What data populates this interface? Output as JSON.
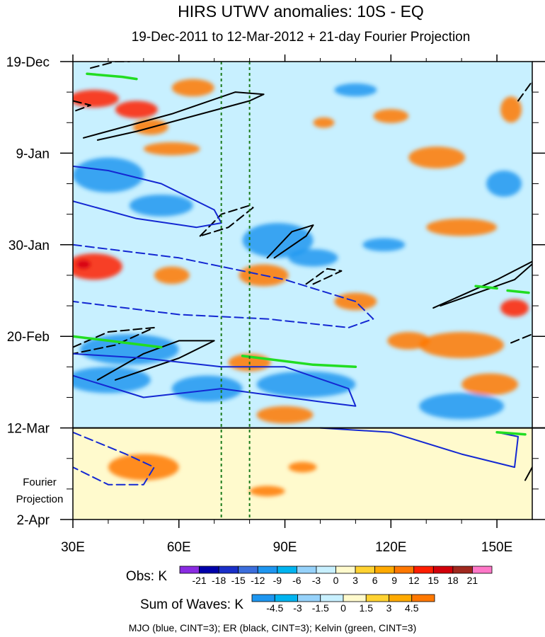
{
  "chart_data": {
    "type": "heatmap",
    "title": "HIRS UTWV anomalies: 10S - EQ",
    "subtitle": "19-Dec-2011 to 12-Mar-2012 + 21-day Fourier Projection",
    "xlabel": "",
    "ylabel": "",
    "x_range": [
      30,
      160
    ],
    "x_ticks": [
      {
        "value": 30,
        "label": "30E"
      },
      {
        "value": 60,
        "label": "60E"
      },
      {
        "value": 90,
        "label": "90E"
      },
      {
        "value": 120,
        "label": "120E"
      },
      {
        "value": 150,
        "label": "150E"
      }
    ],
    "y_range_days": [
      0,
      105
    ],
    "y_ticks": [
      {
        "day": 0,
        "label": "19-Dec"
      },
      {
        "day": 21,
        "label": "9-Jan"
      },
      {
        "day": 42,
        "label": "30-Jan"
      },
      {
        "day": 63,
        "label": "20-Feb"
      },
      {
        "day": 84,
        "label": "12-Mar"
      },
      {
        "day": 105,
        "label": "2-Apr"
      }
    ],
    "projection_start_day": 84,
    "projection_label": [
      "Fourier",
      "Projection"
    ],
    "reference_longitudes": [
      72,
      80
    ],
    "obs_colorbar": {
      "label": "Obs: K",
      "levels": [
        "-21",
        "-18",
        "-15",
        "-12",
        "-9",
        "-6",
        "-3",
        "0",
        "3",
        "6",
        "9",
        "12",
        "15",
        "18",
        "21"
      ],
      "colors": [
        "#8a2be2",
        "#0000aa",
        "#1a2fc8",
        "#3c6edc",
        "#1e96f0",
        "#00b4f0",
        "#96d2fa",
        "#c8f0ff",
        "#fffacd",
        "#ffd232",
        "#ffaa00",
        "#ff7800",
        "#ff1e00",
        "#d2000a",
        "#a0281e",
        "#ff78c8"
      ]
    },
    "waves_colorbar": {
      "label": "Sum of Waves: K",
      "levels": [
        "-4.5",
        "-3",
        "-1.5",
        "0",
        "1.5",
        "3",
        "4.5"
      ],
      "colors": [
        "#1e96f0",
        "#00b4f0",
        "#96d2fa",
        "#c8f0ff",
        "#fffacd",
        "#ffd232",
        "#ffaa00",
        "#ff7800"
      ]
    },
    "footnote": "MJO (blue, CINT=3); ER (black, CINT=3); Kelvin (green, CINT=3)",
    "anomaly_patches": [
      {
        "lon": 36,
        "day": 8.5,
        "rx": 7,
        "ry": 2,
        "level": 5
      },
      {
        "lon": 48,
        "day": 11,
        "rx": 6,
        "ry": 2,
        "level": 5
      },
      {
        "lon": 64,
        "day": 6,
        "rx": 6,
        "ry": 2,
        "level": 4
      },
      {
        "lon": 52,
        "day": 15,
        "rx": 5,
        "ry": 1.8,
        "level": 4
      },
      {
        "lon": 58,
        "day": 20,
        "rx": 8,
        "ry": 1.5,
        "level": 4
      },
      {
        "lon": 40,
        "day": 26,
        "rx": 10,
        "ry": 4,
        "level": -4
      },
      {
        "lon": 55,
        "day": 33,
        "rx": 9,
        "ry": 2.5,
        "level": -4
      },
      {
        "lon": 88,
        "day": 41,
        "rx": 10,
        "ry": 4,
        "level": -4
      },
      {
        "lon": 110,
        "day": 6.5,
        "rx": 6,
        "ry": 1.5,
        "level": -4
      },
      {
        "lon": 120,
        "day": 12.5,
        "rx": 5,
        "ry": 1.6,
        "level": 4
      },
      {
        "lon": 101,
        "day": 14,
        "rx": 3,
        "ry": 1.2,
        "level": 4
      },
      {
        "lon": 133,
        "day": 22,
        "rx": 8,
        "ry": 2.5,
        "level": 4
      },
      {
        "lon": 154,
        "day": 11,
        "rx": 3,
        "ry": 3,
        "level": 4
      },
      {
        "lon": 152,
        "day": 28,
        "rx": 5,
        "ry": 3,
        "level": -4
      },
      {
        "lon": 140,
        "day": 38,
        "rx": 10,
        "ry": 2,
        "level": 4
      },
      {
        "lon": 36,
        "day": 47,
        "rx": 8,
        "ry": 3,
        "level": 5
      },
      {
        "lon": 33,
        "day": 46.5,
        "rx": 2,
        "ry": 1,
        "level": 6
      },
      {
        "lon": 58,
        "day": 49,
        "rx": 5,
        "ry": 2,
        "level": 4
      },
      {
        "lon": 84,
        "day": 49,
        "rx": 7,
        "ry": 2.5,
        "level": 4
      },
      {
        "lon": 98,
        "day": 45,
        "rx": 7,
        "ry": 2,
        "level": -4
      },
      {
        "lon": 118,
        "day": 42,
        "rx": 6,
        "ry": 1.5,
        "level": -4
      },
      {
        "lon": 110,
        "day": 55,
        "rx": 6,
        "ry": 2,
        "level": 4
      },
      {
        "lon": 140,
        "day": 65,
        "rx": 12,
        "ry": 3,
        "level": 4
      },
      {
        "lon": 155,
        "day": 56.5,
        "rx": 4,
        "ry": 2,
        "level": 5
      },
      {
        "lon": 125,
        "day": 64,
        "rx": 6,
        "ry": 2,
        "level": 4
      },
      {
        "lon": 46,
        "day": 66,
        "rx": 14,
        "ry": 3.5,
        "level": -4
      },
      {
        "lon": 40,
        "day": 73,
        "rx": 12,
        "ry": 3,
        "level": -4
      },
      {
        "lon": 68,
        "day": 75,
        "rx": 10,
        "ry": 3,
        "level": -4
      },
      {
        "lon": 96,
        "day": 74,
        "rx": 14,
        "ry": 3,
        "level": -4
      },
      {
        "lon": 80,
        "day": 69,
        "rx": 6,
        "ry": 2,
        "level": 4
      },
      {
        "lon": 140,
        "day": 79,
        "rx": 12,
        "ry": 3,
        "level": -4
      },
      {
        "lon": 148,
        "day": 74,
        "rx": 8,
        "ry": 2.5,
        "level": 4
      },
      {
        "lon": 90,
        "day": 81,
        "rx": 8,
        "ry": 2,
        "level": 4
      },
      {
        "lon": 50,
        "day": 93,
        "rx": 10,
        "ry": 3,
        "level": 4
      },
      {
        "lon": 85,
        "day": 98.5,
        "rx": 5,
        "ry": 1.2,
        "level": 4
      },
      {
        "lon": 95,
        "day": 93,
        "rx": 4,
        "ry": 1.2,
        "level": 4
      }
    ],
    "contours": [
      {
        "wave": "ER",
        "sign": "positive",
        "points": [
          [
            33,
            17.5
          ],
          [
            58,
            12
          ],
          [
            76,
            7
          ],
          [
            84,
            7.5
          ],
          [
            80,
            9
          ],
          [
            48,
            16
          ],
          [
            37,
            18
          ]
        ]
      },
      {
        "wave": "ER",
        "sign": "negative",
        "points": [
          [
            35,
            1.5
          ],
          [
            42,
            0
          ],
          [
            46,
            0
          ]
        ]
      },
      {
        "wave": "ER",
        "sign": "negative",
        "points": [
          [
            30,
            9
          ],
          [
            35,
            10
          ],
          [
            30,
            11.5
          ]
        ]
      },
      {
        "wave": "ER",
        "sign": "negative",
        "points": [
          [
            66,
            40
          ],
          [
            72,
            35
          ],
          [
            80,
            33
          ],
          [
            81,
            33.5
          ],
          [
            74,
            38
          ],
          [
            66,
            40
          ]
        ]
      },
      {
        "wave": "ER",
        "sign": "positive",
        "points": [
          [
            85,
            45
          ],
          [
            92,
            39
          ],
          [
            98,
            37.5
          ],
          [
            96,
            40
          ],
          [
            87,
            45
          ]
        ]
      },
      {
        "wave": "ER",
        "sign": "negative",
        "points": [
          [
            96,
            51
          ],
          [
            102,
            47.5
          ],
          [
            106,
            48
          ],
          [
            98,
            51
          ]
        ]
      },
      {
        "wave": "ER",
        "sign": "positive",
        "points": [
          [
            37,
            73
          ],
          [
            50,
            67
          ],
          [
            60,
            64
          ],
          [
            70,
            64
          ],
          [
            60,
            68
          ],
          [
            42,
            73
          ]
        ]
      },
      {
        "wave": "ER",
        "sign": "negative",
        "points": [
          [
            30,
            65.5
          ],
          [
            40,
            62
          ],
          [
            53,
            61
          ],
          [
            42,
            65
          ],
          [
            30,
            67
          ]
        ]
      },
      {
        "wave": "ER",
        "sign": "positive",
        "points": [
          [
            132,
            56.5
          ],
          [
            150,
            50
          ],
          [
            162,
            45
          ],
          [
            155,
            50
          ],
          [
            134,
            56
          ]
        ]
      },
      {
        "wave": "ER",
        "sign": "negative",
        "points": [
          [
            154,
            64.5
          ],
          [
            160,
            62.5
          ]
        ]
      },
      {
        "wave": "ER",
        "sign": "negative",
        "points": [
          [
            156,
            9
          ],
          [
            160,
            4.5
          ],
          [
            160,
            7
          ]
        ]
      },
      {
        "wave": "ER",
        "sign": "positive",
        "points": [
          [
            158,
            96
          ],
          [
            160,
            93
          ]
        ]
      },
      {
        "wave": "MJO",
        "sign": "positive",
        "points": [
          [
            30,
            32
          ],
          [
            48,
            36
          ],
          [
            65,
            38
          ],
          [
            72,
            37
          ],
          [
            70,
            34
          ],
          [
            55,
            28
          ],
          [
            40,
            25
          ],
          [
            30,
            24
          ]
        ]
      },
      {
        "wave": "MJO",
        "sign": "negative",
        "points": [
          [
            30,
            42
          ],
          [
            60,
            45
          ],
          [
            90,
            50
          ],
          [
            110,
            55
          ],
          [
            115,
            59
          ],
          [
            108,
            61
          ],
          [
            85,
            59
          ],
          [
            60,
            58
          ],
          [
            30,
            55
          ]
        ]
      },
      {
        "wave": "MJO",
        "sign": "positive",
        "points": [
          [
            30,
            72
          ],
          [
            50,
            77
          ],
          [
            72,
            75
          ],
          [
            100,
            78
          ],
          [
            110,
            79
          ],
          [
            108,
            75
          ],
          [
            90,
            70
          ],
          [
            72,
            70
          ],
          [
            50,
            68
          ],
          [
            30,
            67
          ]
        ]
      },
      {
        "wave": "MJO",
        "sign": "positive",
        "points": [
          [
            100,
            84
          ],
          [
            120,
            85
          ],
          [
            140,
            90
          ],
          [
            155,
            93
          ],
          [
            156,
            86
          ],
          [
            150,
            85
          ]
        ]
      },
      {
        "wave": "MJO",
        "sign": "negative",
        "points": [
          [
            30,
            85
          ],
          [
            45,
            90
          ],
          [
            53,
            93
          ],
          [
            50,
            97
          ],
          [
            40,
            97
          ],
          [
            30,
            93
          ]
        ]
      },
      {
        "wave": "Kelvin",
        "sign": "positive",
        "points": [
          [
            34,
            2.8
          ],
          [
            44,
            3.5
          ],
          [
            48,
            4
          ]
        ]
      },
      {
        "wave": "Kelvin",
        "sign": "positive",
        "points": [
          [
            30,
            63
          ],
          [
            45,
            64.5
          ],
          [
            55,
            65.5
          ]
        ]
      },
      {
        "wave": "Kelvin",
        "sign": "positive",
        "points": [
          [
            78,
            67.5
          ],
          [
            98,
            69.5
          ],
          [
            110,
            70
          ]
        ]
      },
      {
        "wave": "Kelvin",
        "sign": "positive",
        "points": [
          [
            144,
            51.5
          ],
          [
            150,
            52
          ]
        ]
      },
      {
        "wave": "Kelvin",
        "sign": "positive",
        "points": [
          [
            153,
            52.5
          ],
          [
            159,
            53
          ]
        ]
      },
      {
        "wave": "Kelvin",
        "sign": "positive",
        "points": [
          [
            150,
            85
          ],
          [
            158,
            85.5
          ]
        ]
      }
    ]
  }
}
